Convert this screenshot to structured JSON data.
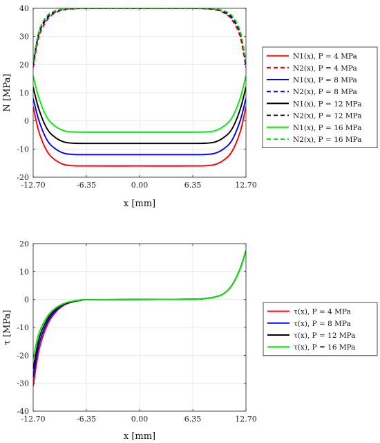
{
  "chart_data": [
    {
      "type": "line",
      "xlabel": "x [mm]",
      "ylabel": "N [MPa]",
      "xlim": [
        -12.7,
        12.7
      ],
      "ylim": [
        -20,
        40
      ],
      "xticks": [
        -12.7,
        -6.35,
        0,
        6.35,
        12.7
      ],
      "xtick_labels": [
        "-12.70",
        "-6.35",
        "0.00",
        "6.35",
        "12.70"
      ],
      "yticks": [
        -20,
        -10,
        0,
        10,
        20,
        30,
        40
      ],
      "ytick_labels": [
        "-20",
        "-10",
        "0",
        "10",
        "20",
        "30",
        "40"
      ],
      "grid": true,
      "legend": "right",
      "series": [
        {
          "name": "N1(x), P = 4 MPa",
          "color": "#ff0000",
          "dash": false,
          "x": [
            -12.7,
            -12.0,
            -11.0,
            -10.0,
            -9.0,
            -8.0,
            -6.35,
            0,
            6.35,
            8.0,
            9.0,
            10.0,
            11.0,
            12.0,
            12.7
          ],
          "y": [
            5,
            -4,
            -11,
            -14,
            -15.5,
            -15.9,
            -16,
            -16,
            -16,
            -15.9,
            -15.5,
            -14,
            -11,
            -4,
            5
          ]
        },
        {
          "name": "N2(x), P = 4 MPa",
          "color": "#ff0000",
          "dash": true,
          "x": [
            -12.7,
            -12.0,
            -11.0,
            -10.0,
            -9.0,
            -8.0,
            -6.35,
            0,
            6.35,
            8.0,
            9.0,
            10.0,
            11.0,
            12.0,
            12.7
          ],
          "y": [
            19,
            30,
            36,
            38.5,
            39.5,
            39.8,
            40,
            40,
            40,
            39.8,
            39.5,
            38.5,
            36,
            30,
            19
          ]
        },
        {
          "name": "N1(x), P = 8 MPa",
          "color": "#0000ff",
          "dash": false,
          "x": [
            -12.7,
            -12.0,
            -11.0,
            -10.0,
            -9.0,
            -8.0,
            -6.35,
            0,
            6.35,
            8.0,
            9.0,
            10.0,
            11.0,
            12.0,
            12.7
          ],
          "y": [
            8,
            0,
            -7,
            -10,
            -11.5,
            -11.9,
            -12,
            -12,
            -12,
            -11.9,
            -11.5,
            -10,
            -7,
            0,
            8
          ]
        },
        {
          "name": "N2(x), P = 8 MPa",
          "color": "#0000ff",
          "dash": true,
          "x": [
            -12.7,
            -12.0,
            -11.0,
            -10.0,
            -9.0,
            -8.0,
            -6.35,
            0,
            6.35,
            8.0,
            9.0,
            10.0,
            11.0,
            12.0,
            12.7
          ],
          "y": [
            20,
            31,
            36.5,
            38.7,
            39.6,
            39.85,
            40,
            40,
            40,
            39.85,
            39.6,
            38.7,
            36.5,
            31,
            20
          ]
        },
        {
          "name": "N1(x), P = 12 MPa",
          "color": "#000000",
          "dash": false,
          "x": [
            -12.7,
            -12.0,
            -11.0,
            -10.0,
            -9.0,
            -8.0,
            -6.35,
            0,
            6.35,
            8.0,
            9.0,
            10.0,
            11.0,
            12.0,
            12.7
          ],
          "y": [
            12,
            4,
            -3,
            -6,
            -7.5,
            -7.9,
            -8,
            -8,
            -8,
            -7.9,
            -7.5,
            -6,
            -3,
            4,
            12
          ]
        },
        {
          "name": "N2(x), P = 12 MPa",
          "color": "#000000",
          "dash": true,
          "x": [
            -12.7,
            -12.0,
            -11.0,
            -10.0,
            -9.0,
            -8.0,
            -6.35,
            0,
            6.35,
            8.0,
            9.0,
            10.0,
            11.0,
            12.0,
            12.7
          ],
          "y": [
            20.5,
            31.5,
            37,
            39,
            39.7,
            39.9,
            40,
            40,
            40,
            39.9,
            39.7,
            39,
            37,
            31.5,
            20.5
          ]
        },
        {
          "name": "N1(x), P = 16 MPa",
          "color": "#00ee00",
          "dash": false,
          "x": [
            -12.7,
            -12.0,
            -11.0,
            -10.0,
            -9.0,
            -8.0,
            -6.35,
            0,
            6.35,
            8.0,
            9.0,
            10.0,
            11.0,
            12.0,
            12.7
          ],
          "y": [
            16,
            8,
            1,
            -2,
            -3.5,
            -3.9,
            -4,
            -4,
            -4,
            -3.9,
            -3.5,
            -2,
            1,
            8,
            16
          ]
        },
        {
          "name": "N2(x), P = 16 MPa",
          "color": "#00ee00",
          "dash": true,
          "x": [
            -12.7,
            -12.0,
            -11.0,
            -10.0,
            -9.0,
            -8.0,
            -6.35,
            0,
            6.35,
            8.0,
            9.0,
            10.0,
            11.0,
            12.0,
            12.7
          ],
          "y": [
            21,
            32,
            37.5,
            39.2,
            39.8,
            39.95,
            40,
            40,
            40,
            39.95,
            39.8,
            39.2,
            37.5,
            32,
            21
          ]
        }
      ]
    },
    {
      "type": "line",
      "xlabel": "x [mm]",
      "ylabel": "τ [MPa]",
      "xlim": [
        -12.7,
        12.7
      ],
      "ylim": [
        -40,
        20
      ],
      "xticks": [
        -12.7,
        -6.35,
        0,
        6.35,
        12.7
      ],
      "xtick_labels": [
        "-12.70",
        "-6.35",
        "0.00",
        "6.35",
        "12.70"
      ],
      "yticks": [
        -40,
        -30,
        -20,
        -10,
        0,
        10,
        20
      ],
      "ytick_labels": [
        "-40",
        "-30",
        "-20",
        "-10",
        "0",
        "10",
        "20"
      ],
      "grid": true,
      "legend": "right",
      "series": [
        {
          "name": "τ(x), P = 4 MPa",
          "color": "#ff0000",
          "dash": false,
          "x": [
            -12.7,
            -12.0,
            -11.0,
            -10.0,
            -9.0,
            -8.0,
            -7.0,
            -6.35,
            0,
            6.35,
            8.0,
            9.0,
            10.0,
            11.0,
            12.0,
            12.7
          ],
          "y": [
            -31,
            -18,
            -9,
            -4.5,
            -2,
            -0.9,
            -0.3,
            -0.1,
            0,
            0.1,
            0.4,
            0.9,
            2,
            5,
            11,
            17.5
          ]
        },
        {
          "name": "τ(x), P = 8 MPa",
          "color": "#0000ff",
          "dash": false,
          "x": [
            -12.7,
            -12.0,
            -11.0,
            -10.0,
            -9.0,
            -8.0,
            -7.0,
            -6.35,
            0,
            6.35,
            8.0,
            9.0,
            10.0,
            11.0,
            12.0,
            12.7
          ],
          "y": [
            -28,
            -16,
            -8,
            -4,
            -1.8,
            -0.8,
            -0.3,
            -0.1,
            0,
            0.1,
            0.4,
            0.9,
            2,
            5,
            11,
            17.5
          ]
        },
        {
          "name": "τ(x), P = 12 MPa",
          "color": "#000000",
          "dash": false,
          "x": [
            -12.7,
            -12.0,
            -11.0,
            -10.0,
            -9.0,
            -8.0,
            -7.0,
            -6.35,
            0,
            6.35,
            8.0,
            9.0,
            10.0,
            11.0,
            12.0,
            12.7
          ],
          "y": [
            -25,
            -14,
            -7,
            -3.5,
            -1.6,
            -0.7,
            -0.25,
            -0.1,
            0,
            0.1,
            0.4,
            0.9,
            2,
            5,
            11,
            17.5
          ]
        },
        {
          "name": "τ(x), P = 16 MPa",
          "color": "#00ee00",
          "dash": false,
          "x": [
            -12.7,
            -12.0,
            -11.0,
            -10.0,
            -9.0,
            -8.0,
            -7.0,
            -6.35,
            0,
            6.35,
            8.0,
            9.0,
            10.0,
            11.0,
            12.0,
            12.7
          ],
          "y": [
            -21,
            -12,
            -6,
            -3,
            -1.4,
            -0.6,
            -0.2,
            -0.1,
            0,
            0.1,
            0.4,
            0.9,
            2,
            5,
            11,
            17.5
          ]
        }
      ]
    }
  ]
}
